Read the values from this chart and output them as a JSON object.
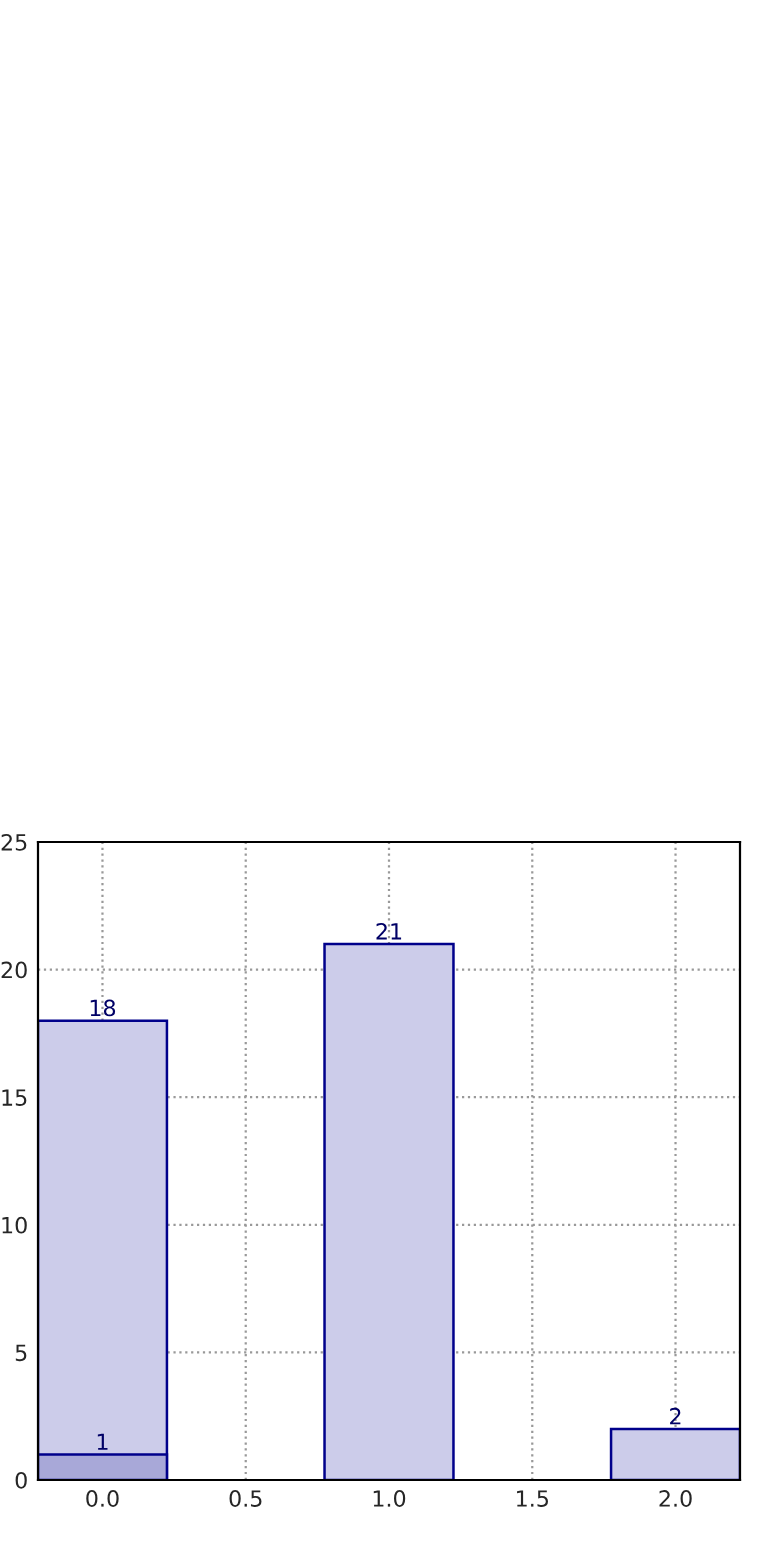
{
  "chart_data": {
    "type": "bar",
    "x": [
      0,
      1,
      2
    ],
    "series": [
      {
        "color": "#ccccea",
        "values": [
          18,
          21,
          2
        ]
      },
      {
        "color": "#a8a8d8",
        "values": [
          1,
          null,
          null
        ]
      }
    ],
    "xlim": [
      -0.225,
      2.225
    ],
    "xticks": [
      {
        "value": 0,
        "label": "0.0"
      },
      {
        "value": 0.5,
        "label": "0.5"
      },
      {
        "value": 1,
        "label": "1.0"
      },
      {
        "value": 1.5,
        "label": "1.5"
      },
      {
        "value": 2,
        "label": "2.0"
      }
    ],
    "ylim": [
      0,
      25
    ],
    "yticks": [
      0,
      5,
      10,
      15,
      20,
      25
    ],
    "grid": true,
    "data_labels": true
  }
}
